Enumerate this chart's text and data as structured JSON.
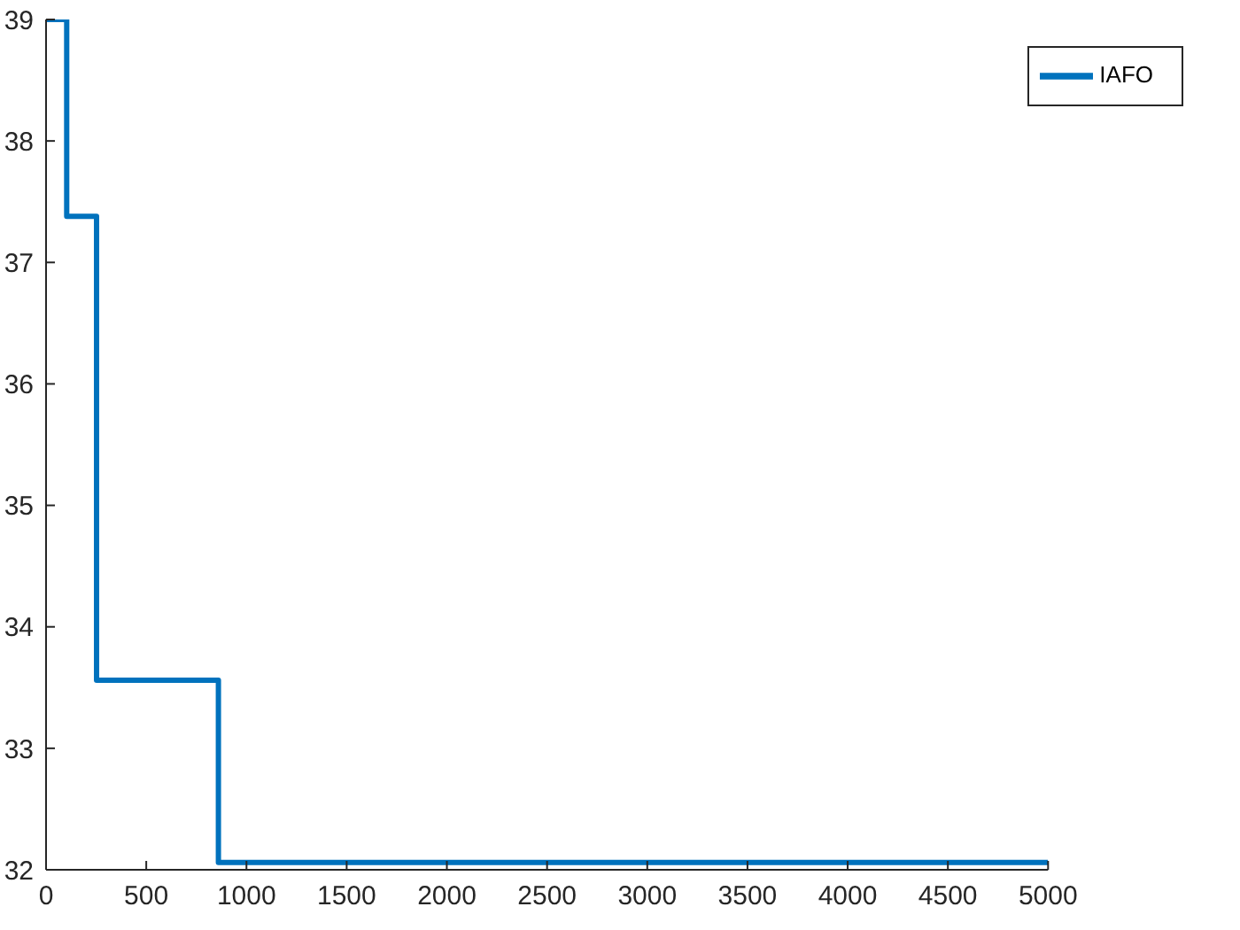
{
  "chart_data": {
    "type": "step",
    "x": [
      0,
      103,
      252,
      860,
      5000
    ],
    "series": [
      {
        "name": "IAFO",
        "color": "#0072bd",
        "values": [
          39,
          37.38,
          33.56,
          32.06,
          32.06
        ]
      }
    ],
    "xlim": [
      0,
      5000
    ],
    "xticks": [
      0,
      500,
      1000,
      1500,
      2000,
      2500,
      3000,
      3500,
      4000,
      4500,
      5000
    ],
    "ylim": [
      32,
      39
    ],
    "yticks": [
      32,
      33,
      34,
      35,
      36,
      37,
      38,
      39
    ],
    "legend": "top right",
    "marker": "none",
    "line_style": "solid"
  }
}
